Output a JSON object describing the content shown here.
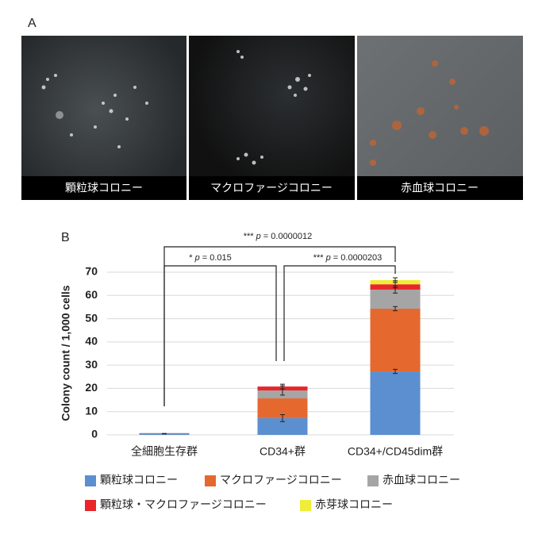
{
  "panel_a": {
    "label": "A",
    "images": [
      {
        "caption": "顆粒球コロニー"
      },
      {
        "caption": "マクロファージコロニー"
      },
      {
        "caption": "赤血球コロニー"
      }
    ]
  },
  "chart_data": {
    "type": "stacked_bar",
    "panel_label": "B",
    "y_label": "Colony count / 1,000 cells",
    "categories": [
      "全細胞生存群",
      "CD34+群",
      "CD34+/CD45dim群"
    ],
    "series": [
      {
        "name": "顆粒球コロニー",
        "color": "#5b8fd0",
        "values": [
          0.5,
          7.2,
          27.3
        ],
        "errors": [
          0.1,
          1.5,
          0.9
        ]
      },
      {
        "name": "マクロファージコロニー",
        "color": "#e5692f",
        "values": [
          0.2,
          8.5,
          27
        ],
        "errors": [
          null,
          null,
          0.9
        ]
      },
      {
        "name": "赤血球コロニー",
        "color": "#a5a5a5",
        "values": [
          0.1,
          3.4,
          8.2
        ],
        "errors": [
          null,
          2,
          1.5
        ]
      },
      {
        "name": "顆粒球・マクロファージコロニー",
        "color": "#e8262a",
        "values": [
          0,
          1.7,
          2.3
        ],
        "errors": [
          null,
          1,
          1.5
        ]
      },
      {
        "name": "赤芽球コロニー",
        "color": "#eeee3a",
        "values": [
          0,
          0,
          1.8
        ],
        "errors": [
          null,
          null,
          1
        ]
      }
    ],
    "ylim": [
      0,
      70
    ],
    "yticks": [
      0,
      10,
      20,
      30,
      40,
      50,
      60,
      70
    ],
    "grid": true,
    "annotations": [
      {
        "stars": "***",
        "stat": "p",
        "value": "= 0.0000012"
      },
      {
        "stars": "*",
        "stat": "p",
        "value": "= 0.015"
      },
      {
        "stars": "***",
        "stat": "p",
        "value": "= 0.0000203"
      }
    ]
  }
}
